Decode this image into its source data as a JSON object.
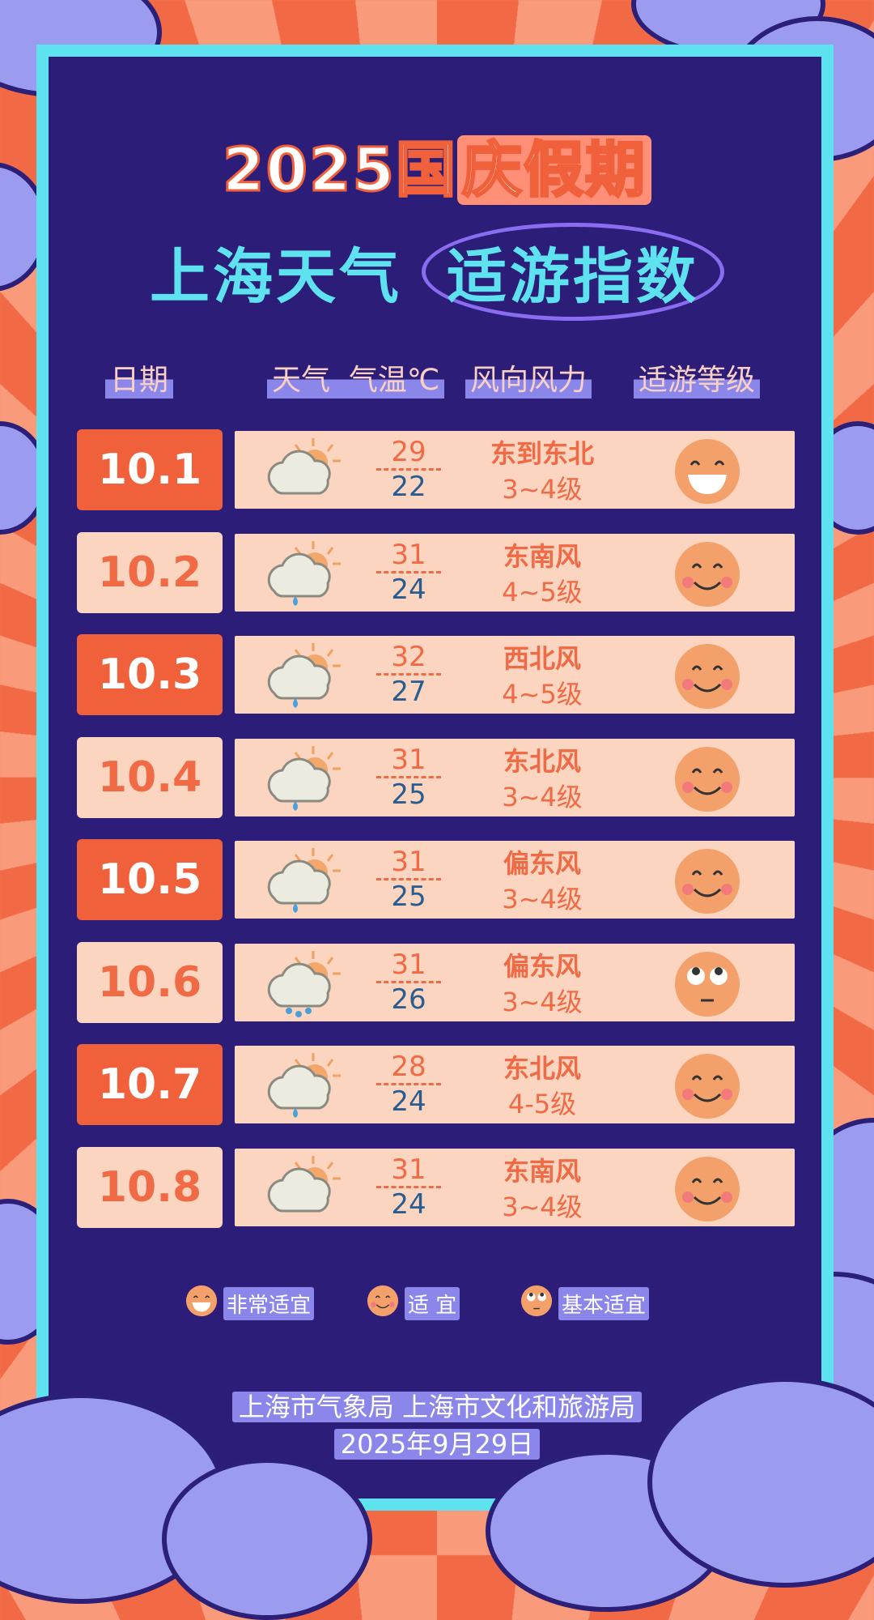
{
  "title": {
    "line1_a": "2025国",
    "line1_b": "庆假期",
    "line2_a": "上海天气",
    "line2_b": "适游指数"
  },
  "headers": [
    "日期",
    "天气",
    "气温℃",
    "风向风力",
    "适游等级"
  ],
  "rows": [
    {
      "date": "10.1",
      "weather": "cloudy-sunny-icon",
      "high": "29",
      "low": "22",
      "wind": "东到东北",
      "level": "3~4级",
      "grade": "very-suitable"
    },
    {
      "date": "10.2",
      "weather": "cloudy-rain-icon",
      "high": "31",
      "low": "24",
      "wind": "东南风",
      "level": "4~5级",
      "grade": "suitable"
    },
    {
      "date": "10.3",
      "weather": "cloudy-rain-icon",
      "high": "32",
      "low": "27",
      "wind": "西北风",
      "level": "4~5级",
      "grade": "suitable"
    },
    {
      "date": "10.4",
      "weather": "cloudy-rain-icon",
      "high": "31",
      "low": "25",
      "wind": "东北风",
      "level": "3~4级",
      "grade": "suitable"
    },
    {
      "date": "10.5",
      "weather": "cloudy-rain-icon",
      "high": "31",
      "low": "25",
      "wind": "偏东风",
      "level": "3~4级",
      "grade": "suitable"
    },
    {
      "date": "10.6",
      "weather": "showers-icon",
      "high": "31",
      "low": "26",
      "wind": "偏东风",
      "level": "3~4级",
      "grade": "basic"
    },
    {
      "date": "10.7",
      "weather": "cloudy-rain-icon",
      "high": "28",
      "low": "24",
      "wind": "东北风",
      "level": "4-5级",
      "grade": "suitable"
    },
    {
      "date": "10.8",
      "weather": "cloudy-sunny-icon",
      "high": "31",
      "low": "24",
      "wind": "东南风",
      "level": "3~4级",
      "grade": "suitable"
    }
  ],
  "legend": [
    {
      "grade": "very-suitable",
      "label": "非常适宜"
    },
    {
      "grade": "suitable",
      "label": "适 宜"
    },
    {
      "grade": "basic",
      "label": "基本适宜"
    }
  ],
  "footer": {
    "source": "上海市气象局  上海市文化和旅游局",
    "date": "2025年9月29日"
  },
  "colors": {
    "navy": "#2b1d78",
    "cyan": "#5fe2ef",
    "orange": "#f0603a",
    "peach": "#fcd5c0",
    "lavender": "#9b9cf0"
  }
}
